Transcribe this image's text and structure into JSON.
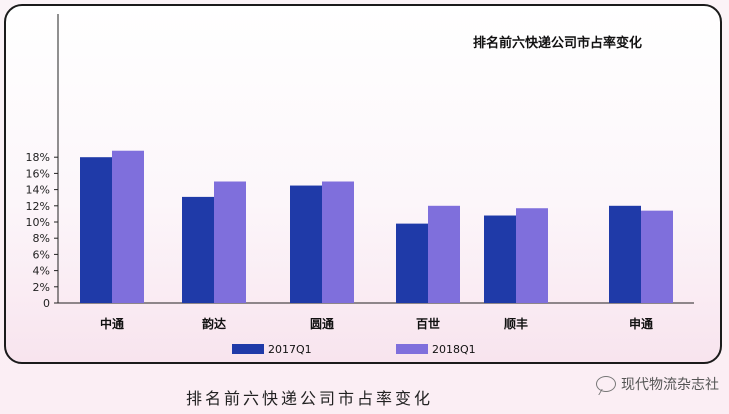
{
  "caption": "排名前六快递公司市占率变化",
  "watermark": {
    "icon": "wechat-icon",
    "text": "现代物流杂志社"
  },
  "colors": {
    "series_2017": "#1f3aa8",
    "series_2018": "#7f6fdc"
  },
  "chart_data": {
    "type": "bar",
    "title": "排名前六快递公司市占率变化",
    "categories": [
      "中通",
      "韵达",
      "圆通",
      "百世",
      "顺丰",
      "申通"
    ],
    "series": [
      {
        "name": "2017Q1",
        "values": [
          18.0,
          13.1,
          14.5,
          9.8,
          10.8,
          12.0
        ]
      },
      {
        "name": "2018Q1",
        "values": [
          18.8,
          15.0,
          15.0,
          12.0,
          11.7,
          11.4
        ]
      }
    ],
    "yticks": [
      "0",
      "2%",
      "4%",
      "6%",
      "8%",
      "10%",
      "12%",
      "14%",
      "16%",
      "18%"
    ],
    "ylim": [
      0,
      19.5
    ],
    "grid": false,
    "legend": "bottom"
  }
}
